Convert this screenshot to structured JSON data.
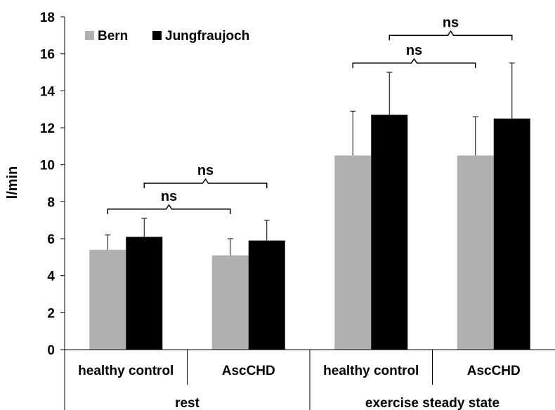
{
  "chart_data": {
    "type": "bar",
    "ylabel": "l/min",
    "ylim": [
      0,
      18
    ],
    "yticks": [
      0,
      2,
      4,
      6,
      8,
      10,
      12,
      14,
      16,
      18
    ],
    "grid": false,
    "legend_position": "top-left",
    "groups": [
      {
        "label": "rest",
        "categories": [
          "healthy control",
          "AscCHD"
        ]
      },
      {
        "label": "exercise steady state",
        "categories": [
          "healthy control",
          "AscCHD"
        ]
      }
    ],
    "categories": [
      "healthy control",
      "AscCHD",
      "healthy control",
      "AscCHD"
    ],
    "series": [
      {
        "name": "Bern",
        "color": "#b0b0b0",
        "values": [
          5.4,
          5.1,
          10.5,
          10.5
        ],
        "error": [
          0.8,
          0.9,
          2.4,
          2.1
        ]
      },
      {
        "name": "Jungfraujoch",
        "color": "#000000",
        "values": [
          6.1,
          5.9,
          12.7,
          12.5
        ],
        "error": [
          1.0,
          1.1,
          2.3,
          3.0
        ]
      }
    ],
    "annotations": [
      {
        "text": "ns",
        "from_bar": [
          0,
          0
        ],
        "to_bar": [
          1,
          0
        ],
        "level": 7.6
      },
      {
        "text": "ns",
        "from_bar": [
          0,
          1
        ],
        "to_bar": [
          1,
          1
        ],
        "level": 9.0
      },
      {
        "text": "ns",
        "from_bar": [
          2,
          0
        ],
        "to_bar": [
          3,
          0
        ],
        "level": 15.5
      },
      {
        "text": "ns",
        "from_bar": [
          2,
          1
        ],
        "to_bar": [
          3,
          1
        ],
        "level": 17.0
      }
    ]
  }
}
